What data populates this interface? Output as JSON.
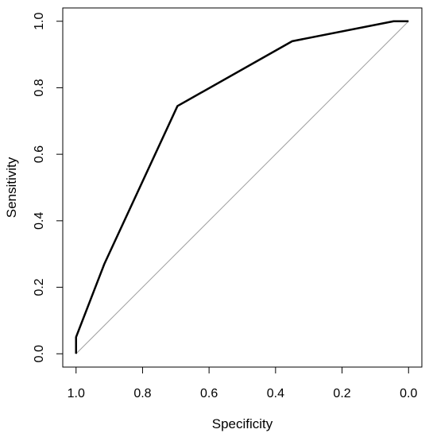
{
  "chart_data": {
    "type": "line",
    "title": "",
    "xlabel": "Specificity",
    "ylabel": "Sensitivity",
    "xlim": [
      1.04,
      -0.04
    ],
    "ylim": [
      -0.04,
      1.04
    ],
    "x_reversed": true,
    "x_ticks": [
      1.0,
      0.8,
      0.6,
      0.4,
      0.2,
      0.0
    ],
    "x_tick_labels": [
      "1.0",
      "0.8",
      "0.6",
      "0.4",
      "0.2",
      "0.0"
    ],
    "y_ticks": [
      0.0,
      0.2,
      0.4,
      0.6,
      0.8,
      1.0
    ],
    "y_tick_labels": [
      "0.0",
      "0.2",
      "0.4",
      "0.6",
      "0.8",
      "1.0"
    ],
    "grid": false,
    "legend": "none",
    "series": [
      {
        "x": [
          1.0,
          1.0,
          0.915,
          0.695,
          0.35,
          0.045,
          0.0
        ],
        "y": [
          0.0,
          0.05,
          0.27,
          0.745,
          0.94,
          1.0,
          1.0
        ],
        "color": "#000000"
      }
    ],
    "reference_line": {
      "x": [
        1.0,
        0.0
      ],
      "y": [
        0.0,
        1.0
      ],
      "color": "#a0a0a0"
    }
  }
}
